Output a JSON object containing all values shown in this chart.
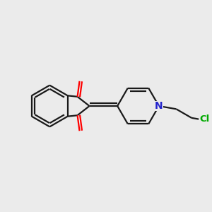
{
  "background_color": "#ebebeb",
  "bond_color": "#1a1a1a",
  "oxygen_color": "#ff0000",
  "nitrogen_color": "#2222cc",
  "chlorine_color": "#00aa00",
  "line_width": 1.6,
  "figsize": [
    3.0,
    3.0
  ],
  "dpi": 100
}
